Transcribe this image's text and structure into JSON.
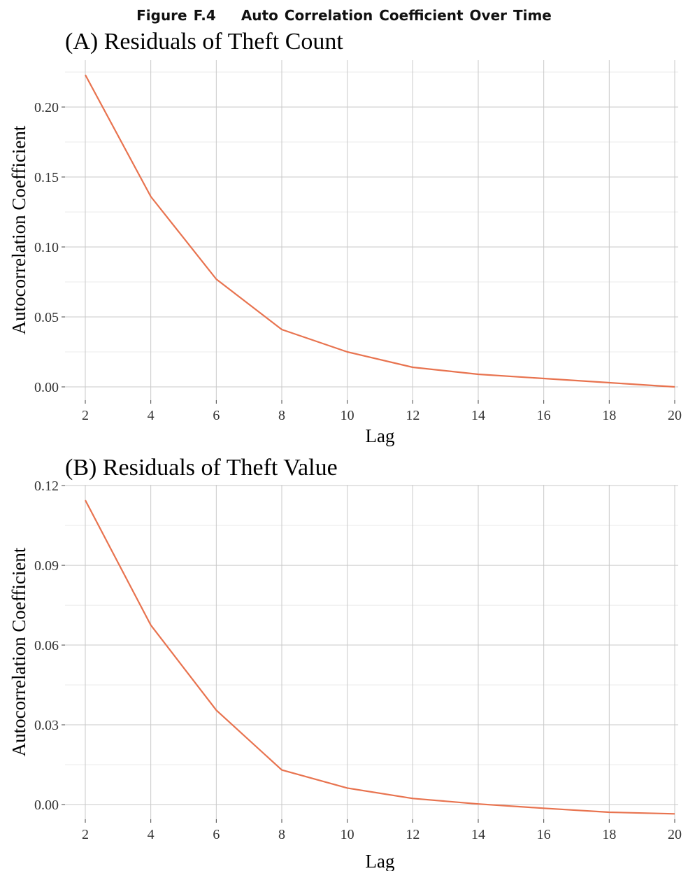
{
  "figure": {
    "number": "Figure F.4",
    "title": "Auto Correlation Coefficient Over Time"
  },
  "colors": {
    "line": "#e8734f"
  },
  "chart_data": [
    {
      "type": "line",
      "title": "(A) Residuals of Theft Count",
      "xlabel": "Lag",
      "ylabel": "Autocorrelation Coefficient",
      "grid": true,
      "xlim": [
        2,
        20
      ],
      "ylim": [
        0,
        0.223
      ],
      "x_ticks": [
        2,
        4,
        6,
        8,
        10,
        12,
        14,
        16,
        18,
        20
      ],
      "y_ticks": [
        0.0,
        0.05,
        0.1,
        0.15,
        0.2
      ],
      "y_tick_labels": [
        "0.00",
        "0.05",
        "0.10",
        "0.15",
        "0.20"
      ],
      "x": [
        2,
        4,
        6,
        8,
        10,
        12,
        14,
        16,
        18,
        20
      ],
      "values": [
        0.223,
        0.136,
        0.077,
        0.041,
        0.025,
        0.014,
        0.009,
        0.006,
        0.003,
        0.0
      ]
    },
    {
      "type": "line",
      "title": "(B) Residuals of Theft Value",
      "xlabel": "Lag",
      "ylabel": "Autocorrelation Coefficient",
      "grid": true,
      "xlim": [
        2,
        20
      ],
      "ylim": [
        -0.0035,
        0.1145
      ],
      "x_ticks": [
        2,
        4,
        6,
        8,
        10,
        12,
        14,
        16,
        18,
        20
      ],
      "y_ticks": [
        0.0,
        0.03,
        0.06,
        0.09,
        0.12
      ],
      "y_tick_labels": [
        "0.00",
        "0.03",
        "0.06",
        "0.09",
        "0.12"
      ],
      "x": [
        2,
        4,
        6,
        8,
        10,
        12,
        14,
        16,
        18,
        20
      ],
      "values": [
        0.1145,
        0.0675,
        0.0355,
        0.013,
        0.0062,
        0.0023,
        0.0002,
        -0.0014,
        -0.0029,
        -0.0035
      ]
    }
  ]
}
